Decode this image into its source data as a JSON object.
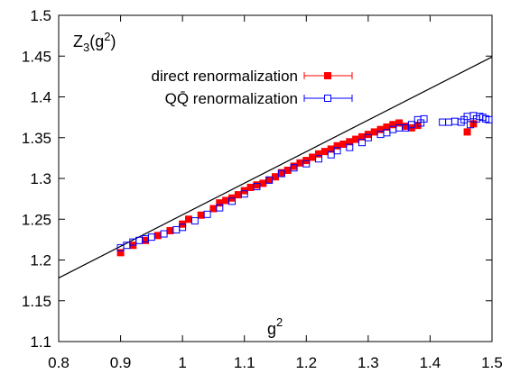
{
  "chart_data": {
    "type": "scatter",
    "title": "",
    "ylabel": "Z",
    "ylabel_sub": "3",
    "ylabel_arg": "(g",
    "ylabel_arg_sup": "2",
    "ylabel_close": ")",
    "xlabel": "g",
    "xlabel_sup": "2",
    "xlim": [
      0.8,
      1.5
    ],
    "ylim": [
      1.1,
      1.5
    ],
    "x_ticks": [
      "0.8",
      "0.9",
      "1",
      "1.1",
      "1.2",
      "1.3",
      "1.4",
      "1.5"
    ],
    "y_ticks": [
      "1.1",
      "1.15",
      "1.2",
      "1.25",
      "1.3",
      "1.35",
      "1.4",
      "1.45",
      "1.5"
    ],
    "grid": false,
    "legend_position": "top-left",
    "fit_line": {
      "x": [
        0.8,
        1.5
      ],
      "y": [
        1.178,
        1.449
      ],
      "color": "#000000"
    },
    "series": [
      {
        "name": "direct renormalization",
        "marker": "filled-square",
        "color": "#ff0000",
        "x": [
          0.9,
          0.92,
          0.94,
          0.96,
          0.98,
          1.0,
          1.01,
          1.03,
          1.05,
          1.06,
          1.07,
          1.08,
          1.09,
          1.1,
          1.11,
          1.12,
          1.13,
          1.14,
          1.15,
          1.16,
          1.17,
          1.18,
          1.19,
          1.2,
          1.21,
          1.22,
          1.23,
          1.24,
          1.25,
          1.26,
          1.27,
          1.28,
          1.29,
          1.3,
          1.31,
          1.32,
          1.33,
          1.34,
          1.35,
          1.36,
          1.37,
          1.38,
          1.46,
          1.47
        ],
        "y": [
          1.209,
          1.218,
          1.224,
          1.23,
          1.236,
          1.244,
          1.25,
          1.255,
          1.263,
          1.27,
          1.273,
          1.276,
          1.28,
          1.285,
          1.289,
          1.292,
          1.294,
          1.298,
          1.302,
          1.307,
          1.31,
          1.315,
          1.319,
          1.322,
          1.326,
          1.33,
          1.333,
          1.336,
          1.34,
          1.342,
          1.345,
          1.348,
          1.351,
          1.354,
          1.357,
          1.36,
          1.363,
          1.366,
          1.368,
          1.364,
          1.362,
          1.365,
          1.357,
          1.367
        ]
      },
      {
        "name": "QQ̄ renormalization",
        "marker": "open-square",
        "color": "#0000ff",
        "x": [
          0.9,
          0.91,
          0.92,
          0.93,
          0.94,
          0.95,
          0.97,
          0.99,
          1.0,
          1.02,
          1.04,
          1.06,
          1.08,
          1.1,
          1.12,
          1.14,
          1.16,
          1.18,
          1.2,
          1.22,
          1.24,
          1.25,
          1.27,
          1.29,
          1.3,
          1.32,
          1.33,
          1.34,
          1.35,
          1.36,
          1.37,
          1.38,
          1.385,
          1.39,
          1.42,
          1.43,
          1.44,
          1.45,
          1.455,
          1.46,
          1.465,
          1.47,
          1.475,
          1.48,
          1.485,
          1.49,
          1.495
        ],
        "y": [
          1.215,
          1.218,
          1.222,
          1.224,
          1.226,
          1.228,
          1.232,
          1.237,
          1.24,
          1.248,
          1.256,
          1.264,
          1.272,
          1.281,
          1.29,
          1.298,
          1.306,
          1.313,
          1.318,
          1.324,
          1.329,
          1.334,
          1.338,
          1.344,
          1.35,
          1.354,
          1.356,
          1.36,
          1.362,
          1.362,
          1.366,
          1.372,
          1.368,
          1.373,
          1.369,
          1.369,
          1.37,
          1.369,
          1.372,
          1.376,
          1.366,
          1.377,
          1.373,
          1.376,
          1.375,
          1.373,
          1.372
        ]
      }
    ]
  }
}
